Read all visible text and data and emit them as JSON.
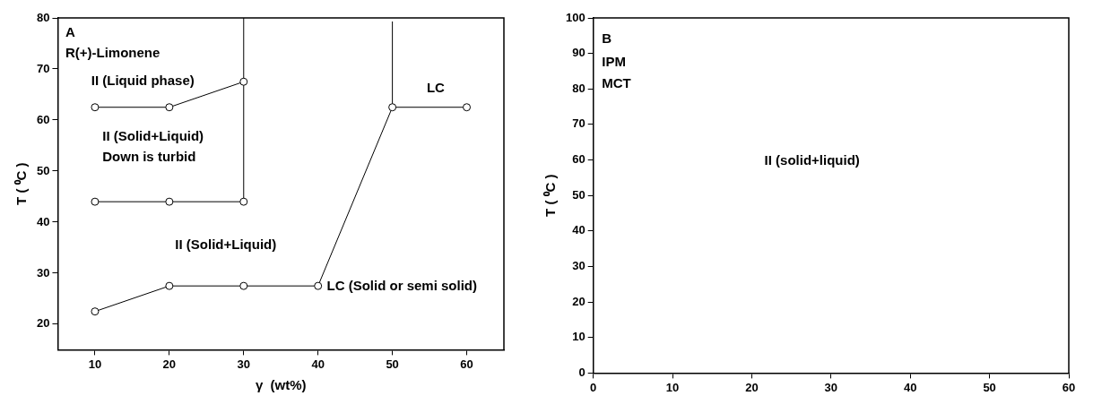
{
  "chart_data": [
    {
      "type": "line",
      "xlabel": "γ  (wt%)",
      "ylabel": "T ( ⁰C )",
      "xlim": [
        5,
        65
      ],
      "xticks": [
        10,
        20,
        30,
        40,
        50,
        60
      ],
      "ylim": [
        15,
        80
      ],
      "yticks": [
        20,
        30,
        40,
        50,
        60,
        70,
        80
      ],
      "grid": false,
      "legend": false,
      "marker": "circle",
      "line_style": "solid",
      "series": [
        {
          "color": "#000000",
          "x": [
            10,
            20,
            30
          ],
          "values": [
            62.5,
            62.5,
            67.5
          ]
        },
        {
          "color": "#000000",
          "x": [
            10,
            20,
            30
          ],
          "values": [
            44,
            44,
            44
          ]
        },
        {
          "color": "#000000",
          "x": [
            10,
            20,
            30,
            40,
            50,
            60
          ],
          "values": [
            22.5,
            27.5,
            27.5,
            27.5,
            62.5,
            62.5
          ]
        },
        {
          "color": "#000000",
          "x": [
            30,
            30
          ],
          "values": [
            44,
            80
          ],
          "marker": "none"
        },
        {
          "color": "#000000",
          "x": [
            50,
            50
          ],
          "values": [
            62.5,
            79.3
          ],
          "marker": "none"
        }
      ],
      "annotations": [
        "A",
        "R(+)-Limonene",
        "II (Liquid phase)",
        "II (Solid+Liquid)",
        "Down is turbid",
        "II (Solid+Liquid)",
        "LC (Solid or semi solid)",
        "LC"
      ]
    },
    {
      "type": "line",
      "ylabel": "T ( ⁰C )",
      "xlim": [
        0,
        60
      ],
      "xticks": [
        0,
        10,
        20,
        30,
        40,
        50,
        60
      ],
      "ylim": [
        0,
        100
      ],
      "yticks": [
        0,
        10,
        20,
        30,
        40,
        50,
        60,
        70,
        80,
        90,
        100
      ],
      "grid": false,
      "legend": false,
      "annotations": [
        "B",
        "IPM",
        "MCT",
        "II (solid+liquid)"
      ]
    }
  ]
}
